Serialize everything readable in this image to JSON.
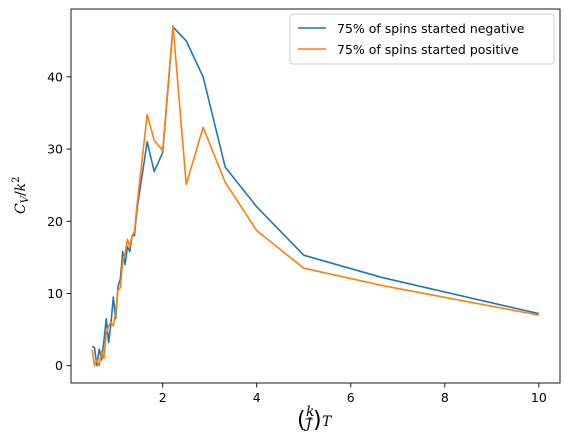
{
  "chart_data": {
    "type": "line",
    "title": "",
    "xlabel": "(k/J)T",
    "xlabel_parts": {
      "num": "k",
      "den": "J",
      "var": "T"
    },
    "ylabel": "C_V/k²",
    "ylabel_parts": {
      "c": "C",
      "sub": "V",
      "slash": "/",
      "k": "k",
      "sup": "2"
    },
    "xlim": [
      0.05,
      10.45
    ],
    "ylim": [
      -2.4,
      49.4
    ],
    "xticks": [
      2,
      4,
      6,
      8,
      10
    ],
    "yticks": [
      0,
      10,
      20,
      30,
      40
    ],
    "grid": false,
    "legend_position": "top-right",
    "series": [
      {
        "name": "75% of spins started negative",
        "color": "#1f77b4",
        "x": [
          0.5,
          0.55,
          0.6,
          0.65,
          0.7,
          0.75,
          0.8,
          0.85,
          0.9,
          0.95,
          1.0,
          1.05,
          1.1,
          1.15,
          1.2,
          1.25,
          1.3,
          1.35,
          1.4,
          1.45,
          1.67,
          1.82,
          2.0,
          2.22,
          2.5,
          2.86,
          3.33,
          4.0,
          5.0,
          6.67,
          10.0
        ],
        "y": [
          2.7,
          2.5,
          0.0,
          2.3,
          0.8,
          3.4,
          6.5,
          3.2,
          5.9,
          9.5,
          6.5,
          11.0,
          12.0,
          15.8,
          14.0,
          16.5,
          15.8,
          18.0,
          18.0,
          21.5,
          31.0,
          26.9,
          29.5,
          46.9,
          45.0,
          40.0,
          27.5,
          22.0,
          15.3,
          12.2,
          7.2
        ]
      },
      {
        "name": "75% of spins started positive",
        "color": "#ff7f0e",
        "x": [
          0.5,
          0.55,
          0.6,
          0.65,
          0.7,
          0.75,
          0.8,
          0.85,
          0.9,
          0.95,
          1.0,
          1.05,
          1.1,
          1.15,
          1.2,
          1.25,
          1.3,
          1.35,
          1.4,
          1.45,
          1.67,
          1.82,
          2.0,
          2.22,
          2.5,
          2.86,
          3.33,
          4.0,
          5.0,
          6.67,
          10.0
        ],
        "y": [
          2.2,
          0.0,
          0.8,
          0.0,
          2.0,
          1.0,
          4.5,
          5.5,
          6.0,
          5.5,
          7.5,
          10.5,
          10.8,
          14.5,
          15.5,
          17.5,
          16.5,
          18.0,
          18.5,
          22.0,
          34.8,
          31.2,
          29.8,
          47.1,
          25.1,
          33.0,
          25.4,
          18.7,
          13.5,
          11.1,
          7.0
        ]
      }
    ]
  }
}
